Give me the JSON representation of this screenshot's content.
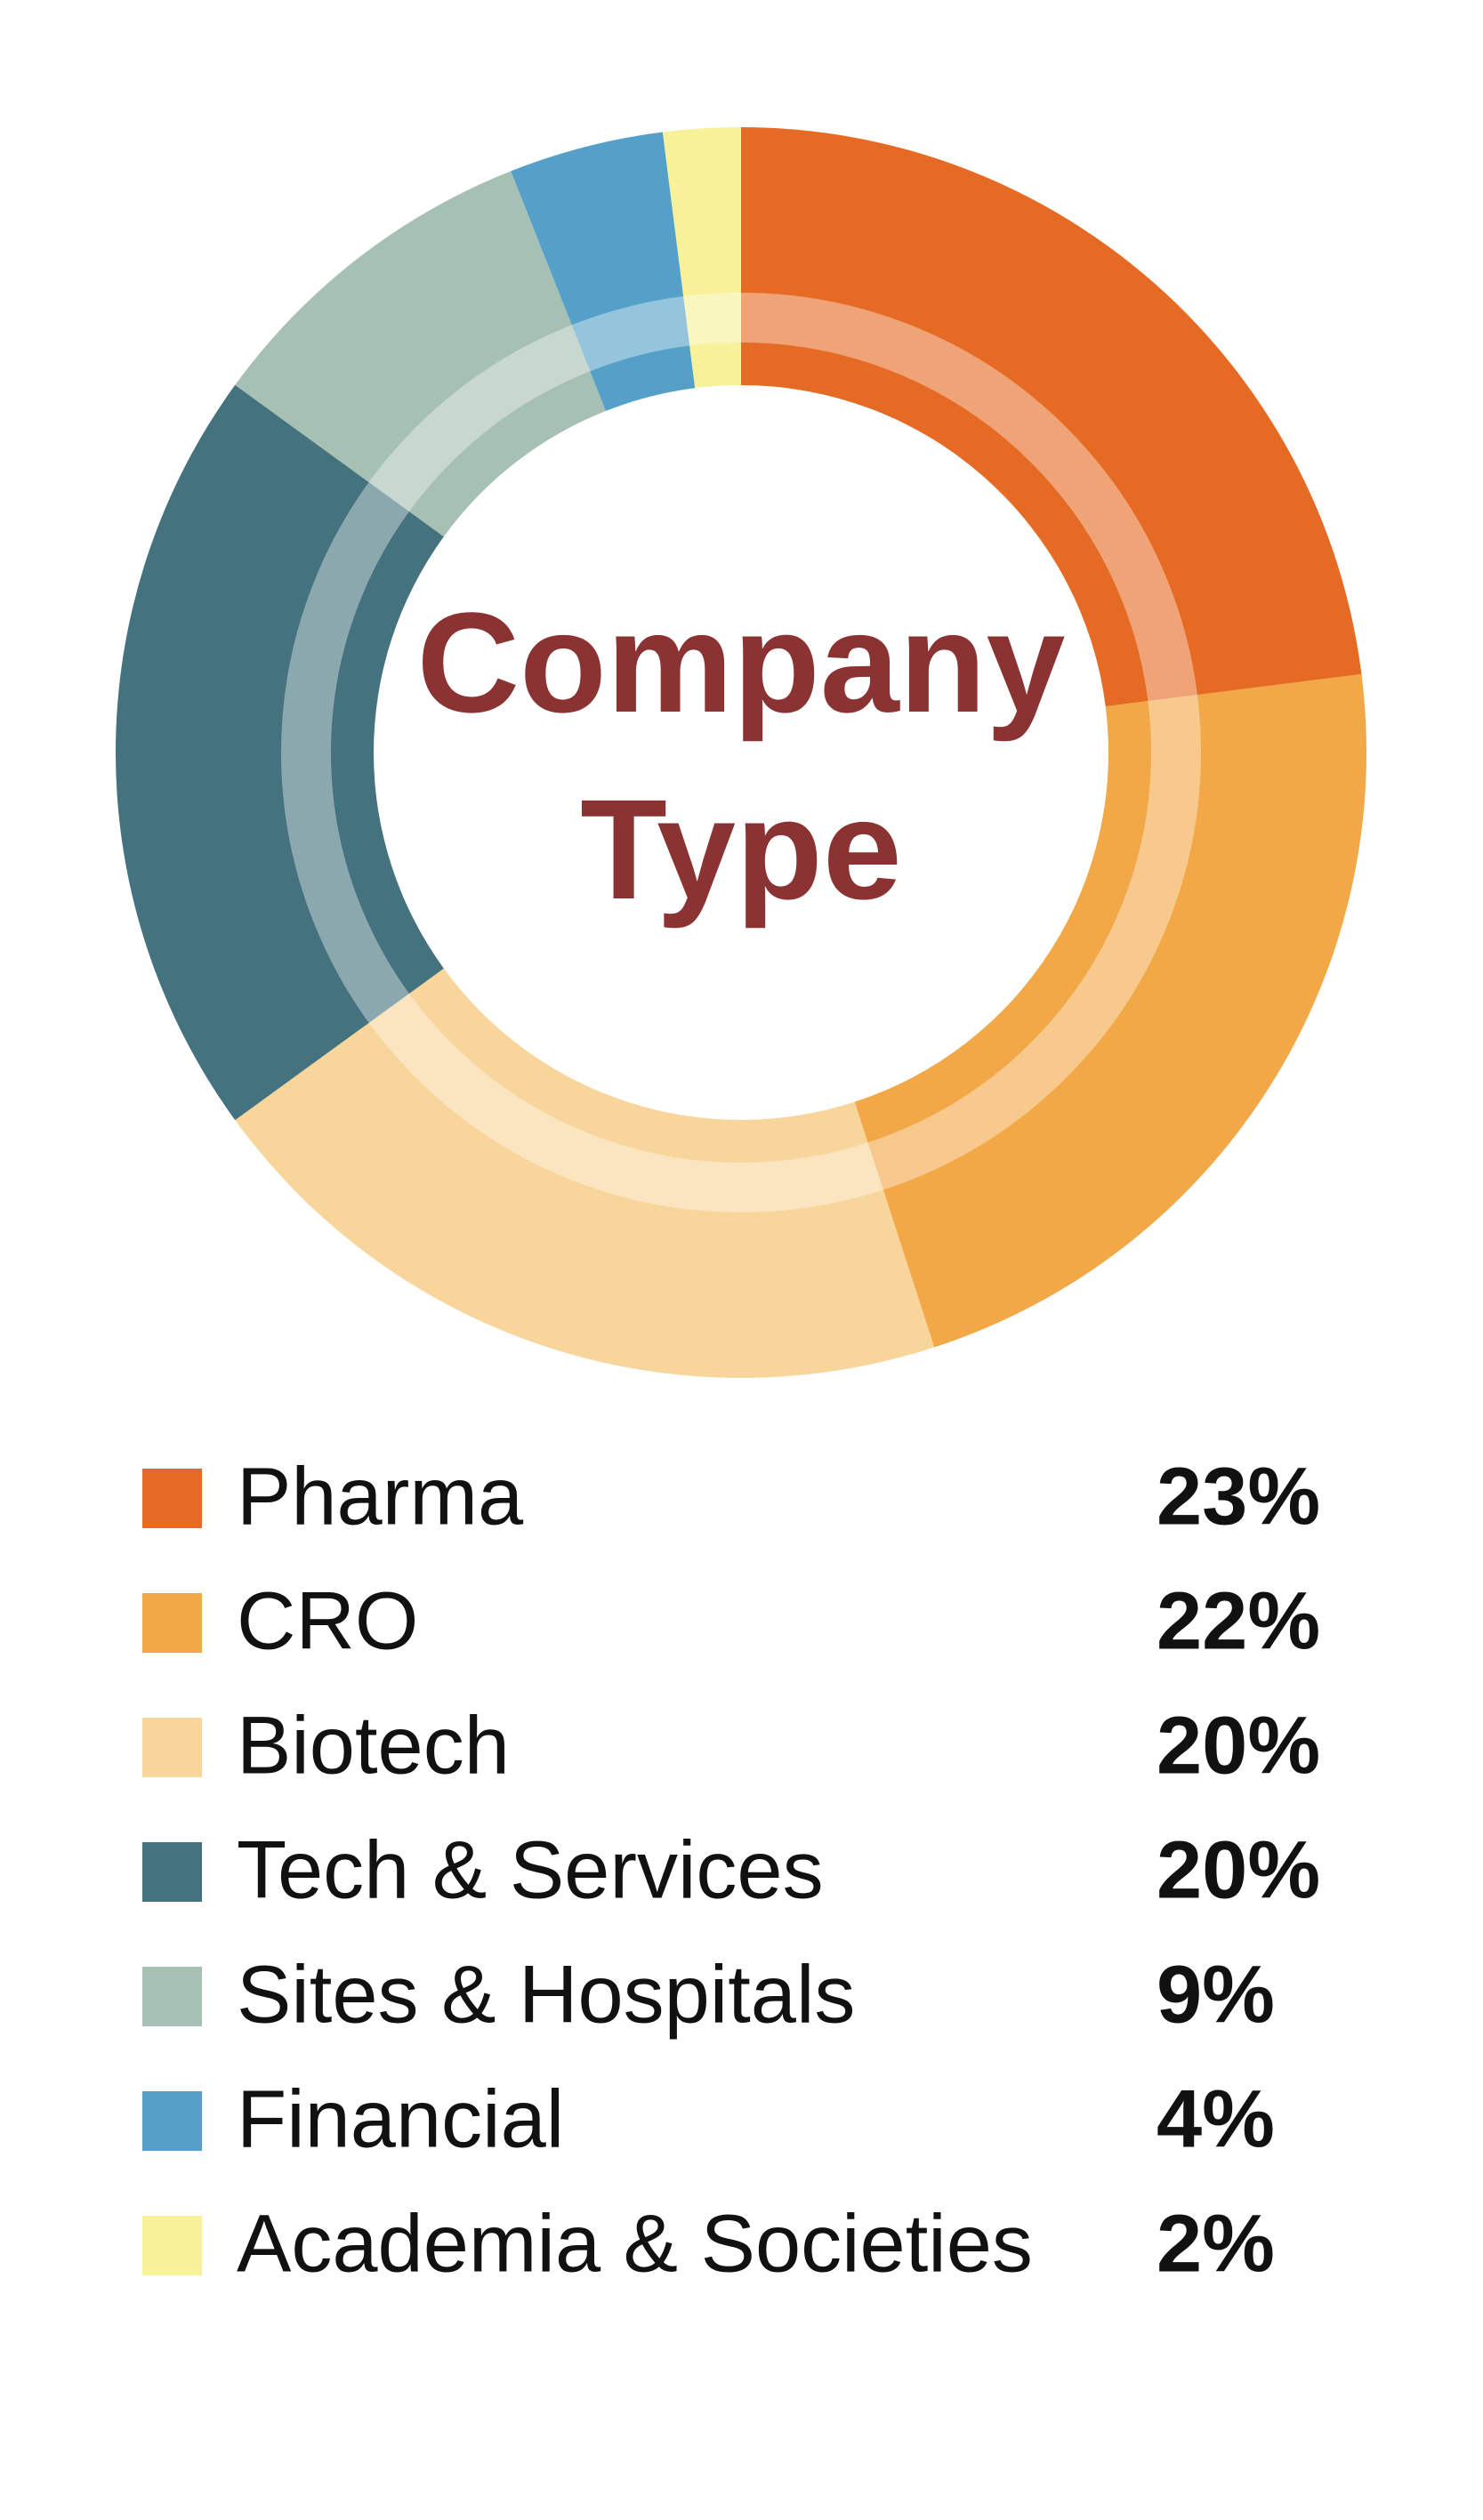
{
  "chart_data": {
    "type": "pie",
    "title": "Company Type",
    "categories": [
      "Pharma",
      "CRO",
      "Biotech",
      "Tech & Services",
      "Sites & Hospitals",
      "Financial",
      "Academia & Societies"
    ],
    "values": [
      23,
      22,
      20,
      20,
      9,
      4,
      2
    ],
    "value_labels": [
      "23%",
      "22%",
      "20%",
      "20%",
      "9%",
      "4%",
      "2%"
    ],
    "colors": [
      "#e56b25",
      "#f3a847",
      "#f8d59a",
      "#44737f",
      "#a6c1b4",
      "#55a0c8",
      "#f7f19a"
    ]
  }
}
